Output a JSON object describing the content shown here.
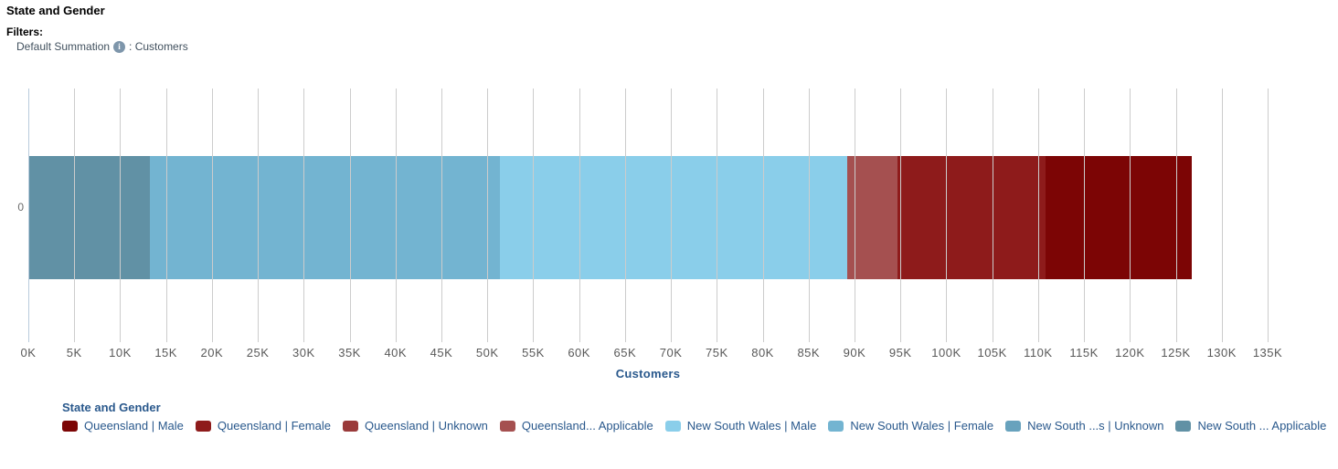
{
  "header": {
    "title": "State and Gender",
    "filters_label": "Filters:",
    "filter_name": "Default Summation",
    "info_icon_glyph": "i",
    "filter_value": ": Customers"
  },
  "chart_data": {
    "type": "bar",
    "orientation": "horizontal",
    "stacked": true,
    "title": "State and Gender",
    "xlabel": "Customers",
    "category_label": "0",
    "legend_title": "State and Gender",
    "legend_position": "bottom",
    "grid": true,
    "axis": {
      "min": 0,
      "max": 135000,
      "tick_step": 5000,
      "tick_labels": [
        "0K",
        "5K",
        "10K",
        "15K",
        "20K",
        "25K",
        "30K",
        "35K",
        "40K",
        "45K",
        "50K",
        "55K",
        "60K",
        "65K",
        "70K",
        "75K",
        "80K",
        "85K",
        "90K",
        "95K",
        "100K",
        "105K",
        "110K",
        "115K",
        "120K",
        "125K",
        "130K",
        "135K"
      ]
    },
    "series": [
      {
        "name": "Queensland | Male",
        "color": "#7c0505",
        "value": 15900
      },
      {
        "name": "Queensland | Female",
        "color": "#8e1b1b",
        "value": 16100
      },
      {
        "name": "Queensland | Unknown",
        "color": "#9a3a3a",
        "value": 0
      },
      {
        "name": "Queensland... Applicable",
        "color": "#a55050",
        "value": 5500
      },
      {
        "name": "New South Wales | Male",
        "color": "#8aceea",
        "value": 37800
      },
      {
        "name": "New South Wales | Female",
        "color": "#73b4d1",
        "value": 38200
      },
      {
        "name": "New South ...s | Unknown",
        "color": "#68a2bd",
        "value": 0
      },
      {
        "name": "New South ... Applicable",
        "color": "#6191a5",
        "value": 13200
      }
    ],
    "stack_order_left_to_right": [
      7,
      6,
      5,
      4,
      3,
      2,
      1,
      0
    ],
    "colors": {
      "gridline": "#cccccc",
      "axis_line": "#b9cbdc",
      "tick_text": "#595959",
      "axis_title_text": "#29588c",
      "legend_text": "#29588c"
    }
  }
}
